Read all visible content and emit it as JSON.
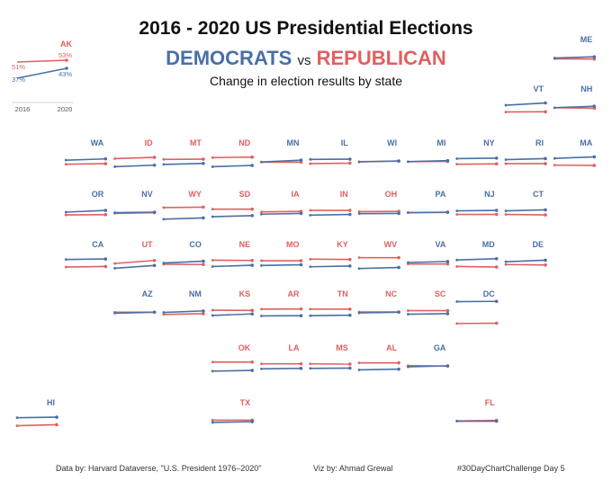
{
  "header": {
    "title": "2016 - 2020 US Presidential Elections",
    "subtitle_dem": "DEMOCRATS",
    "subtitle_vs": "vs",
    "subtitle_rep": "REPUBLICAN",
    "caption": "Change in election results by state"
  },
  "footer": {
    "source": "Data by: Harvard Dataverse, \"U.S. President 1976–2020\"",
    "author": "Viz by: Ahmad Grewal",
    "hashtag": "#30DayChartChallenge  Day 5"
  },
  "colors": {
    "dem": "#4a6fa5",
    "rep": "#e06060"
  },
  "chart_data": {
    "type": "line",
    "layout": "tile grid map of US states, one small slope chart per state",
    "x": [
      "2016",
      "2020"
    ],
    "legend": {
      "state": "AK",
      "x_labels": [
        "2016",
        "2020"
      ],
      "dem_labels": [
        "37%",
        "43%"
      ],
      "rep_labels": [
        "51%",
        "53%"
      ]
    },
    "series": [
      {
        "state": "ME",
        "winner": "dem",
        "dem": [
          48,
          53
        ],
        "rep": [
          45,
          44
        ]
      },
      {
        "state": "VT",
        "winner": "dem",
        "dem": [
          57,
          66
        ],
        "rep": [
          30,
          31
        ]
      },
      {
        "state": "NH",
        "winner": "dem",
        "dem": [
          47,
          53
        ],
        "rep": [
          47,
          45
        ]
      },
      {
        "state": "WA",
        "winner": "dem",
        "dem": [
          53,
          58
        ],
        "rep": [
          37,
          39
        ]
      },
      {
        "state": "ID",
        "winner": "rep",
        "dem": [
          27,
          33
        ],
        "rep": [
          59,
          64
        ]
      },
      {
        "state": "MT",
        "winner": "rep",
        "dem": [
          36,
          40
        ],
        "rep": [
          56,
          57
        ]
      },
      {
        "state": "ND",
        "winner": "rep",
        "dem": [
          27,
          32
        ],
        "rep": [
          63,
          65
        ]
      },
      {
        "state": "MN",
        "winner": "dem",
        "dem": [
          46,
          53
        ],
        "rep": [
          45,
          45
        ]
      },
      {
        "state": "IL",
        "winner": "dem",
        "dem": [
          56,
          57
        ],
        "rep": [
          39,
          41
        ]
      },
      {
        "state": "WI",
        "winner": "dem",
        "dem": [
          46,
          50
        ],
        "rep": [
          47,
          49
        ]
      },
      {
        "state": "MI",
        "winner": "dem",
        "dem": [
          47,
          51
        ],
        "rep": [
          47,
          48
        ]
      },
      {
        "state": "NY",
        "winner": "dem",
        "dem": [
          59,
          61
        ],
        "rep": [
          37,
          38
        ]
      },
      {
        "state": "RI",
        "winner": "dem",
        "dem": [
          55,
          59
        ],
        "rep": [
          39,
          39
        ]
      },
      {
        "state": "MA",
        "winner": "dem",
        "dem": [
          60,
          66
        ],
        "rep": [
          33,
          32
        ]
      },
      {
        "state": "OR",
        "winner": "dem",
        "dem": [
          50,
          57
        ],
        "rep": [
          39,
          40
        ]
      },
      {
        "state": "NV",
        "winner": "dem",
        "dem": [
          48,
          50
        ],
        "rep": [
          45,
          48
        ]
      },
      {
        "state": "WY",
        "winner": "rep",
        "dem": [
          22,
          27
        ],
        "rep": [
          68,
          70
        ]
      },
      {
        "state": "SD",
        "winner": "rep",
        "dem": [
          32,
          36
        ],
        "rep": [
          62,
          62
        ]
      },
      {
        "state": "IA",
        "winner": "rep",
        "dem": [
          42,
          45
        ],
        "rep": [
          51,
          53
        ]
      },
      {
        "state": "IN",
        "winner": "rep",
        "dem": [
          38,
          41
        ],
        "rep": [
          57,
          57
        ]
      },
      {
        "state": "OH",
        "winner": "rep",
        "dem": [
          44,
          45
        ],
        "rep": [
          52,
          53
        ]
      },
      {
        "state": "PA",
        "winner": "dem",
        "dem": [
          48,
          50
        ],
        "rep": [
          48,
          49
        ]
      },
      {
        "state": "NJ",
        "winner": "dem",
        "dem": [
          55,
          57
        ],
        "rep": [
          41,
          41
        ]
      },
      {
        "state": "CT",
        "winner": "dem",
        "dem": [
          55,
          59
        ],
        "rep": [
          41,
          39
        ]
      },
      {
        "state": "CA",
        "winner": "dem",
        "dem": [
          62,
          64
        ],
        "rep": [
          32,
          34
        ]
      },
      {
        "state": "UT",
        "winner": "rep",
        "dem": [
          27,
          38
        ],
        "rep": [
          46,
          58
        ]
      },
      {
        "state": "CO",
        "winner": "dem",
        "dem": [
          48,
          55
        ],
        "rep": [
          43,
          42
        ]
      },
      {
        "state": "NE",
        "winner": "rep",
        "dem": [
          34,
          39
        ],
        "rep": [
          59,
          58
        ]
      },
      {
        "state": "MO",
        "winner": "rep",
        "dem": [
          38,
          41
        ],
        "rep": [
          57,
          57
        ]
      },
      {
        "state": "KY",
        "winner": "rep",
        "dem": [
          33,
          36
        ],
        "rep": [
          63,
          62
        ]
      },
      {
        "state": "WV",
        "winner": "rep",
        "dem": [
          26,
          30
        ],
        "rep": [
          69,
          69
        ]
      },
      {
        "state": "VA",
        "winner": "dem",
        "dem": [
          50,
          54
        ],
        "rep": [
          44,
          44
        ]
      },
      {
        "state": "MD",
        "winner": "dem",
        "dem": [
          60,
          65
        ],
        "rep": [
          34,
          32
        ]
      },
      {
        "state": "DE",
        "winner": "dem",
        "dem": [
          53,
          59
        ],
        "rep": [
          42,
          40
        ]
      },
      {
        "state": "DC",
        "winner": "dem",
        "dem": [
          91,
          92
        ],
        "rep": [
          4,
          5
        ]
      },
      {
        "state": "AZ",
        "winner": "dem",
        "dem": [
          45,
          49
        ],
        "rep": [
          49,
          49
        ]
      },
      {
        "state": "NM",
        "winner": "dem",
        "dem": [
          48,
          54
        ],
        "rep": [
          40,
          43
        ]
      },
      {
        "state": "KS",
        "winner": "rep",
        "dem": [
          36,
          42
        ],
        "rep": [
          57,
          56
        ]
      },
      {
        "state": "AR",
        "winner": "rep",
        "dem": [
          34,
          35
        ],
        "rep": [
          61,
          62
        ]
      },
      {
        "state": "TN",
        "winner": "rep",
        "dem": [
          35,
          37
        ],
        "rep": [
          61,
          61
        ]
      },
      {
        "state": "NC",
        "winner": "rep",
        "dem": [
          46,
          49
        ],
        "rep": [
          50,
          50
        ]
      },
      {
        "state": "SC",
        "winner": "rep",
        "dem": [
          41,
          43
        ],
        "rep": [
          55,
          55
        ]
      },
      {
        "state": "OK",
        "winner": "rep",
        "dem": [
          29,
          32
        ],
        "rep": [
          65,
          65
        ]
      },
      {
        "state": "LA",
        "winner": "rep",
        "dem": [
          38,
          40
        ],
        "rep": [
          58,
          58
        ]
      },
      {
        "state": "MS",
        "winner": "rep",
        "dem": [
          40,
          41
        ],
        "rep": [
          58,
          57
        ]
      },
      {
        "state": "AL",
        "winner": "rep",
        "dem": [
          34,
          37
        ],
        "rep": [
          62,
          62
        ]
      },
      {
        "state": "GA",
        "winner": "dem",
        "dem": [
          46,
          50
        ],
        "rep": [
          51,
          49
        ]
      },
      {
        "state": "HI",
        "winner": "dem",
        "dem": [
          62,
          64
        ],
        "rep": [
          30,
          34
        ]
      },
      {
        "state": "TX",
        "winner": "rep",
        "dem": [
          43,
          46
        ],
        "rep": [
          52,
          52
        ]
      },
      {
        "state": "FL",
        "winner": "rep",
        "dem": [
          48,
          48
        ],
        "rep": [
          49,
          51
        ]
      }
    ]
  }
}
